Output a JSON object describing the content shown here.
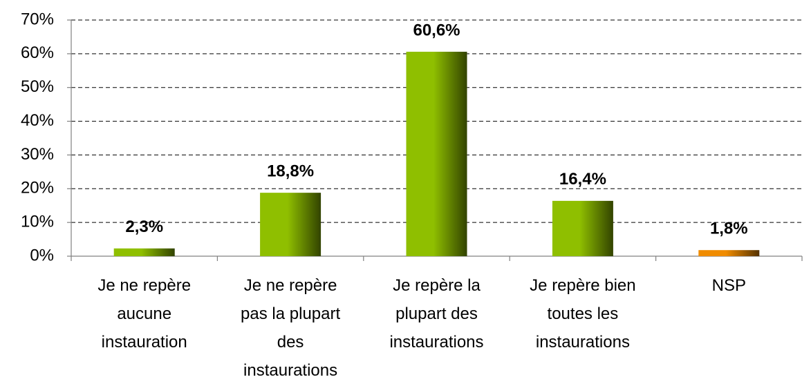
{
  "chart_data": {
    "type": "bar",
    "categories": [
      "Je ne repère aucune instauration",
      "Je ne repère pas la plupart des instaurations",
      "Je repère la plupart des instaurations",
      "Je repère bien toutes les instaurations",
      "NSP"
    ],
    "values": [
      2.3,
      18.8,
      60.6,
      16.4,
      1.8
    ],
    "value_labels": [
      "2,3%",
      "18,8%",
      "60,6%",
      "16,4%",
      "1,8%"
    ],
    "colors": [
      "#8fbf00",
      "#8fbf00",
      "#8fbf00",
      "#8fbf00",
      "#f08c00"
    ],
    "ylim": [
      0,
      70
    ],
    "yticks": [
      {
        "value": 0,
        "label": "0%"
      },
      {
        "value": 10,
        "label": "10%"
      },
      {
        "value": 20,
        "label": "20%"
      },
      {
        "value": 30,
        "label": "30%"
      },
      {
        "value": 40,
        "label": "40%"
      },
      {
        "value": 50,
        "label": "50%"
      },
      {
        "value": 60,
        "label": "60%"
      },
      {
        "value": 70,
        "label": "70%"
      }
    ],
    "grid": true
  }
}
